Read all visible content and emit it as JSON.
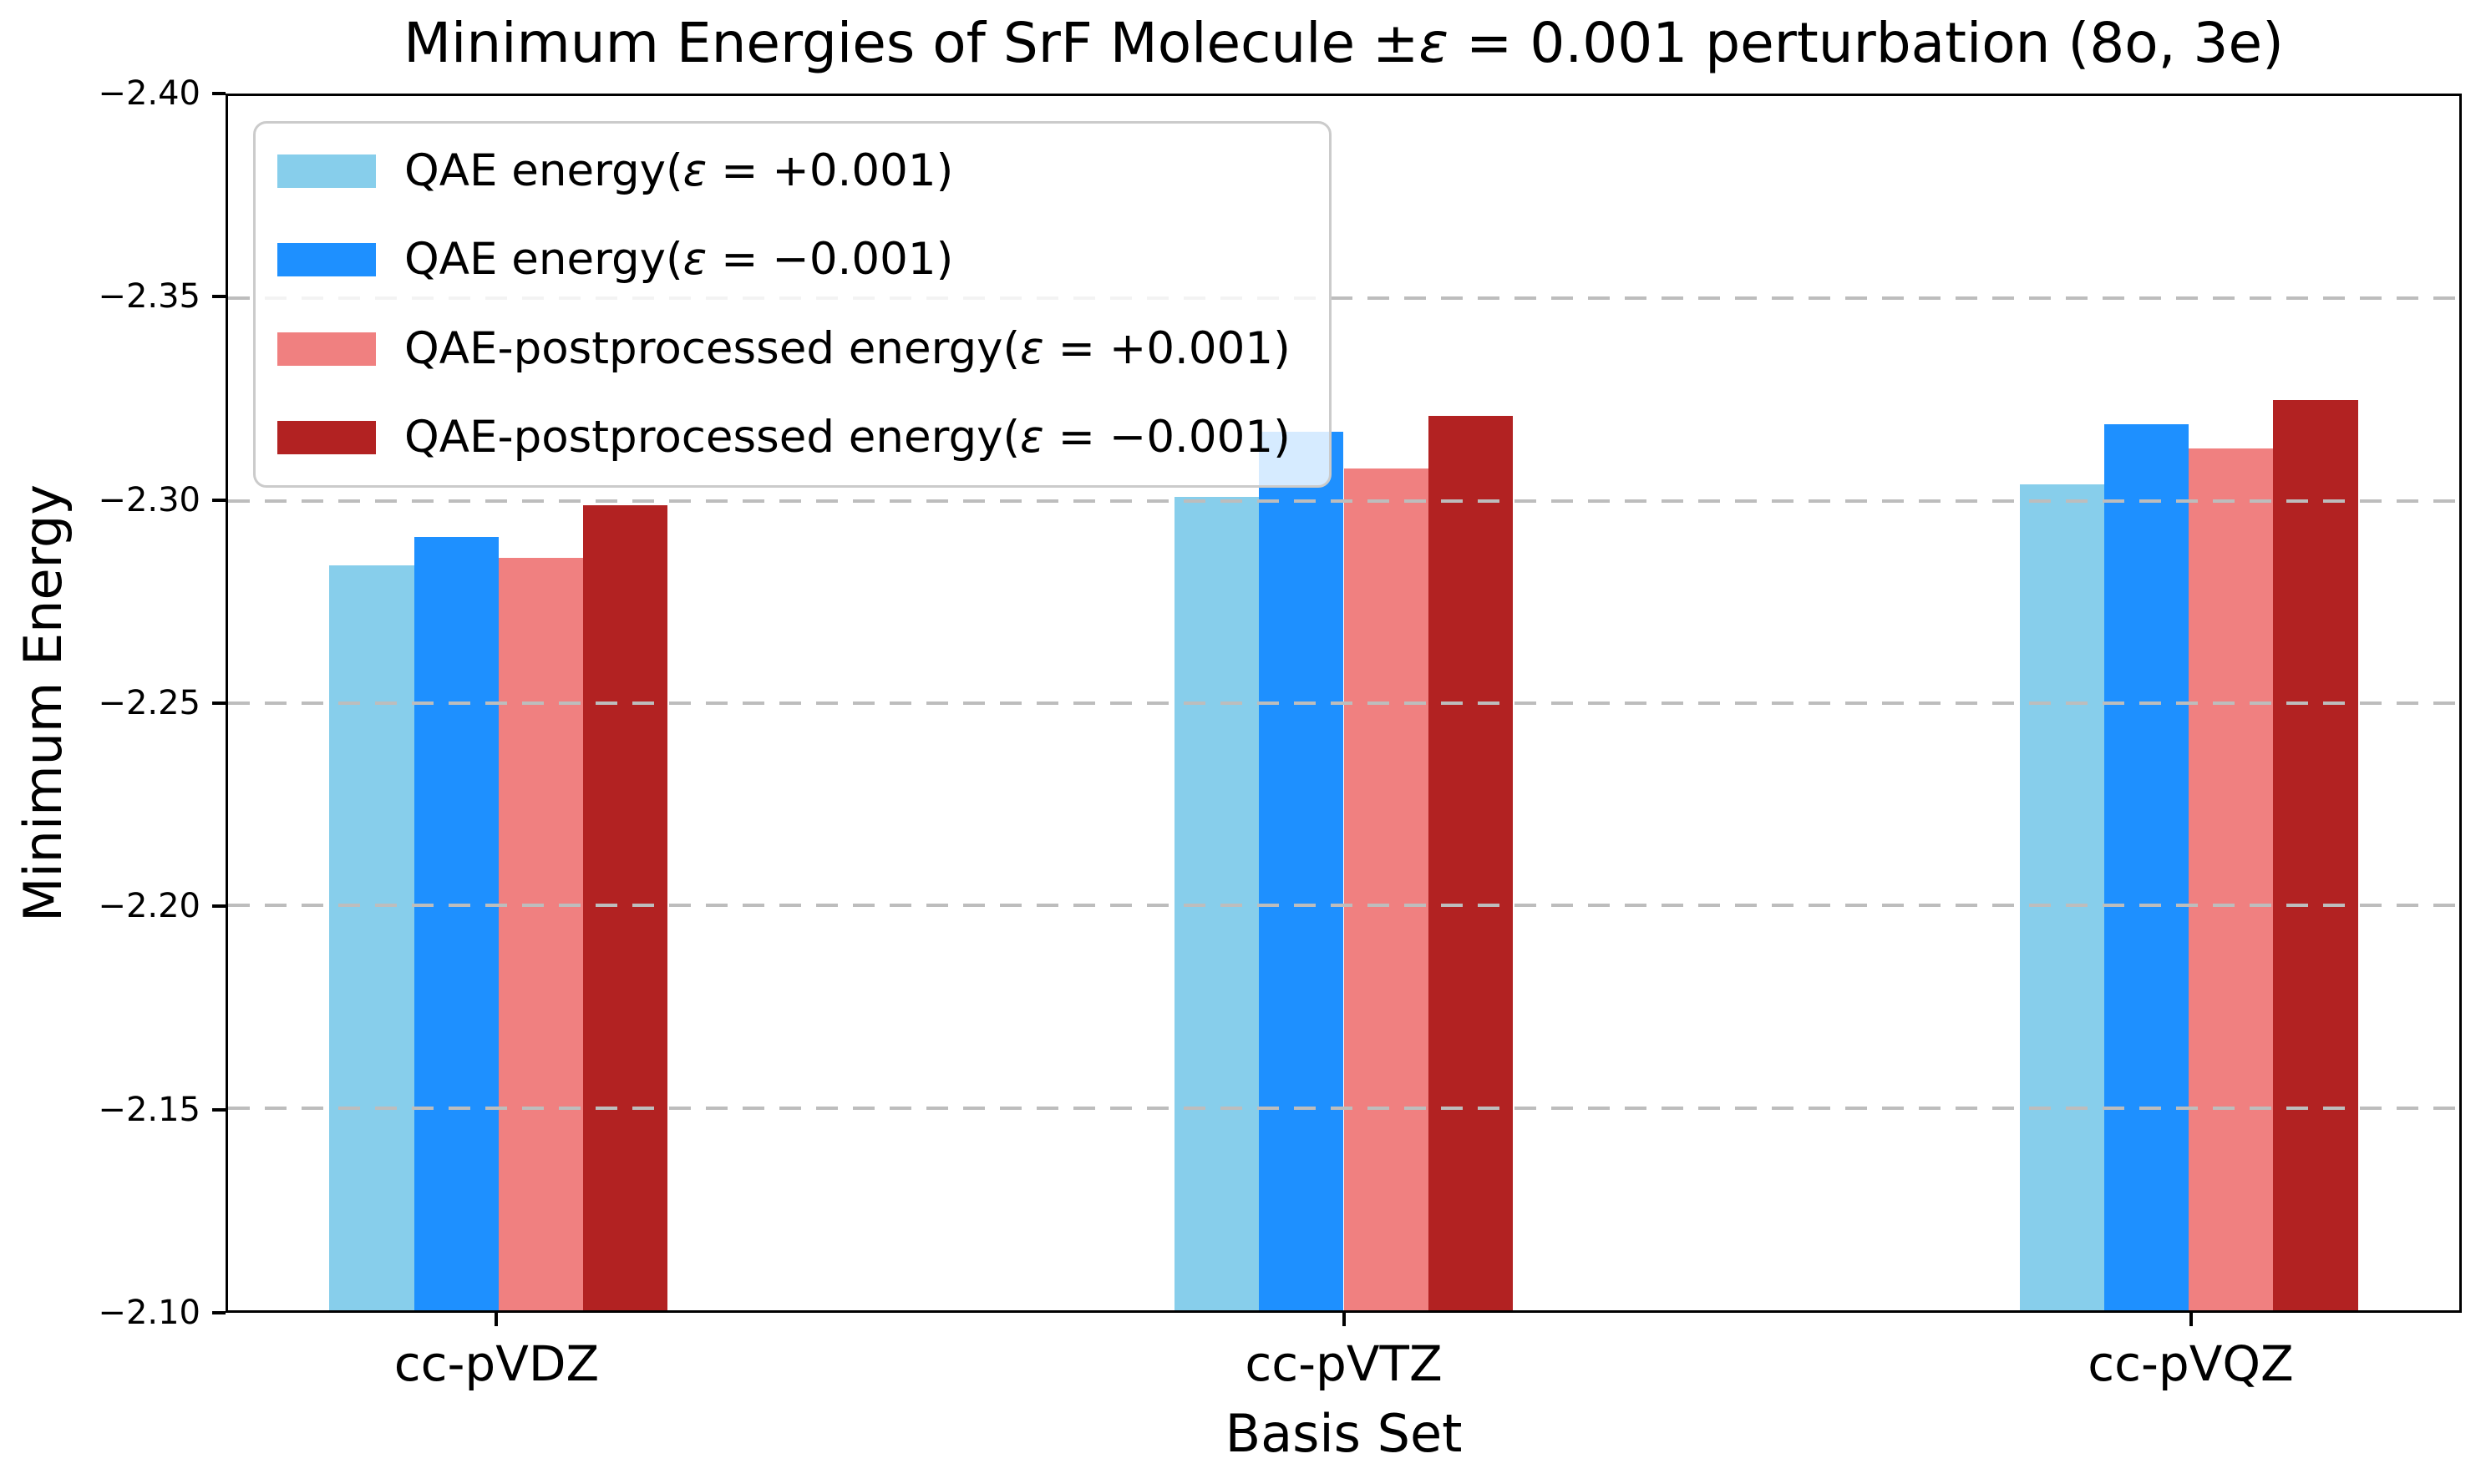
{
  "chart_data": {
    "type": "bar",
    "title": "Minimum Energies of SrF Molecule ±ε = 0.001 perturbation (8o, 3e)",
    "xlabel": "Basis Set",
    "ylabel": "Minimum Energy",
    "categories": [
      "cc-pVDZ",
      "cc-pVTZ",
      "cc-pVQZ"
    ],
    "series": [
      {
        "name": "QAE energy(ε = +0.001)",
        "color": "#87CEEB",
        "values": [
          -2.284,
          -2.301,
          -2.304
        ]
      },
      {
        "name": "QAE energy(ε = −0.001)",
        "color": "#1E90FF",
        "values": [
          -2.291,
          -2.317,
          -2.319
        ]
      },
      {
        "name": "QAE-postprocessed energy(ε = +0.001)",
        "color": "#F08080",
        "values": [
          -2.286,
          -2.308,
          -2.313
        ]
      },
      {
        "name": "QAE-postprocessed energy(ε = −0.001)",
        "color": "#B22222",
        "values": [
          -2.299,
          -2.321,
          -2.325
        ]
      }
    ],
    "y_axis": {
      "top": -2.4,
      "bottom": -2.1,
      "inverted": true,
      "ticks": [
        -2.4,
        -2.35,
        -2.3,
        -2.25,
        -2.2,
        -2.15,
        -2.1
      ],
      "tick_labels": [
        "−2.40",
        "−2.35",
        "−2.30",
        "−2.25",
        "−2.20",
        "−2.15",
        "−2.10"
      ]
    },
    "baseline": -2.1,
    "grid": {
      "visible": true,
      "style": "dashed",
      "color": "#bdbdbd",
      "over_bars": true
    },
    "legend": {
      "position": "upper left"
    },
    "layout_hints": {
      "xlim": [
        -0.32,
        2.32
      ],
      "bar_width": 0.1,
      "group_offsets": [
        -0.15,
        -0.05,
        0.05,
        0.15
      ]
    }
  }
}
